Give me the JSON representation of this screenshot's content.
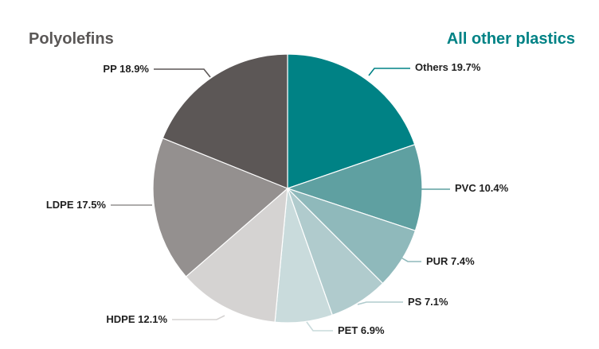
{
  "headings": {
    "left": "Polyolefins",
    "right": "All other plastics",
    "left_color": "#5a5756",
    "right_color": "#008285"
  },
  "chart_data": {
    "type": "pie",
    "title": "",
    "slices": [
      {
        "name": "Others",
        "value": 19.7,
        "label": "Others 19.7%",
        "color": "#008285",
        "group": "All other plastics"
      },
      {
        "name": "PVC",
        "value": 10.4,
        "label": "PVC 10.4%",
        "color": "#5fa0a1",
        "group": "All other plastics"
      },
      {
        "name": "PUR",
        "value": 7.4,
        "label": "PUR 7.4%",
        "color": "#8fb9bb",
        "group": "All other plastics"
      },
      {
        "name": "PS",
        "value": 7.1,
        "label": "PS 7.1%",
        "color": "#b0cbcd",
        "group": "All other plastics"
      },
      {
        "name": "PET",
        "value": 6.9,
        "label": "PET 6.9%",
        "color": "#c9dbdc",
        "group": "All other plastics"
      },
      {
        "name": "HDPE",
        "value": 12.1,
        "label": "HDPE 12.1%",
        "color": "#d5d3d2",
        "group": "Polyolefins"
      },
      {
        "name": "LDPE",
        "value": 17.5,
        "label": "LDPE 17.5%",
        "color": "#94908f",
        "group": "Polyolefins"
      },
      {
        "name": "PP",
        "value": 18.9,
        "label": "PP 18.9%",
        "color": "#5c5756",
        "group": "Polyolefins"
      }
    ],
    "start_angle": "12 o'clock",
    "direction": "clockwise",
    "legend": "none"
  }
}
